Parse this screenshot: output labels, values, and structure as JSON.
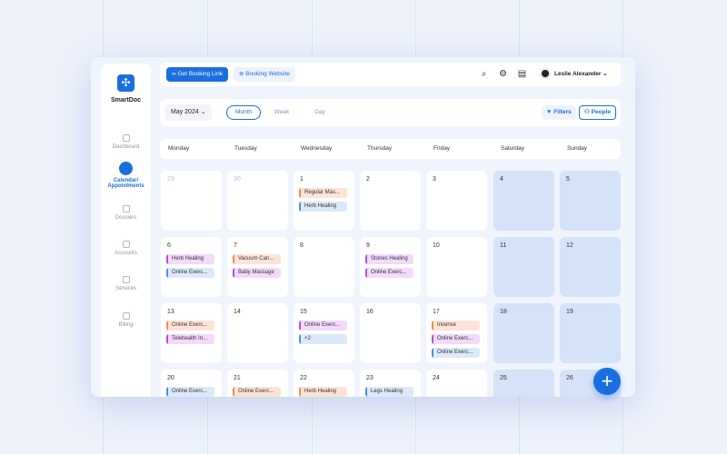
{
  "app": {
    "name": "SmartDoc"
  },
  "sidebar": {
    "items": [
      {
        "label": "Dashboard",
        "icon": "dashboard-icon",
        "active": false
      },
      {
        "label": "Calendar/ Appointments",
        "icon": "calendar-icon",
        "active": true
      },
      {
        "label": "Dossiers",
        "icon": "clipboard-icon",
        "active": false
      },
      {
        "label": "Accounts",
        "icon": "accounts-icon",
        "active": false
      },
      {
        "label": "Services",
        "icon": "heart-icon",
        "active": false
      },
      {
        "label": "Billing",
        "icon": "billing-icon",
        "active": false
      }
    ]
  },
  "topbar": {
    "booking_link": "Get Booking Link",
    "booking_website": "Booking Website",
    "user_name": "Leslie Alexander"
  },
  "toolbar": {
    "month": "May 2024",
    "views": [
      "Month",
      "Week",
      "Day"
    ],
    "active_view": "Month",
    "filters": "Filters",
    "people": "People"
  },
  "weekdays": [
    "Monday",
    "Tuesday",
    "Wednesday",
    "Thursday",
    "Friday",
    "Saturday",
    "Sunday"
  ],
  "colors": {
    "accent": "#1a6fe0",
    "weekend": "#d5e3f8",
    "orange": "#f08a4b",
    "blue": "#4a90e2",
    "purple": "#b44be0"
  },
  "weeks": [
    [
      {
        "d": "29",
        "muted": true
      },
      {
        "d": "30",
        "muted": true
      },
      {
        "d": "1",
        "events": [
          {
            "t": "Regular Mas...",
            "c": "orange"
          },
          {
            "t": "Herb Healing",
            "c": "blue"
          }
        ]
      },
      {
        "d": "2"
      },
      {
        "d": "3"
      },
      {
        "d": "4"
      },
      {
        "d": "5"
      }
    ],
    [
      {
        "d": "6",
        "events": [
          {
            "t": "Herb Healing",
            "c": "purple"
          },
          {
            "t": "Online Exerc...",
            "c": "blue"
          }
        ]
      },
      {
        "d": "7",
        "events": [
          {
            "t": "Vacuum Can...",
            "c": "orange"
          },
          {
            "t": "Baby Massage",
            "c": "purple"
          }
        ]
      },
      {
        "d": "8"
      },
      {
        "d": "9",
        "events": [
          {
            "t": "Stones Healing",
            "c": "purple"
          },
          {
            "t": "Online Exerc...",
            "c": "purple"
          }
        ]
      },
      {
        "d": "10"
      },
      {
        "d": "11"
      },
      {
        "d": "12"
      }
    ],
    [
      {
        "d": "13",
        "events": [
          {
            "t": "Online Exerc...",
            "c": "orange"
          },
          {
            "t": "Telehealth In...",
            "c": "purple"
          }
        ]
      },
      {
        "d": "14"
      },
      {
        "d": "15",
        "events": [
          {
            "t": "Online Exerc...",
            "c": "purple"
          },
          {
            "t": "+2",
            "c": "blue"
          }
        ]
      },
      {
        "d": "16"
      },
      {
        "d": "17",
        "events": [
          {
            "t": "Incense",
            "c": "orange"
          },
          {
            "t": "Online Exerc...",
            "c": "purple"
          },
          {
            "t": "Online Exerc...",
            "c": "blue"
          }
        ]
      },
      {
        "d": "18"
      },
      {
        "d": "19"
      }
    ],
    [
      {
        "d": "20",
        "events": [
          {
            "t": "Online Exerc...",
            "c": "blue"
          }
        ]
      },
      {
        "d": "21",
        "events": [
          {
            "t": "Online Exerc...",
            "c": "orange"
          }
        ]
      },
      {
        "d": "22",
        "events": [
          {
            "t": "Herb Healing",
            "c": "orange"
          }
        ]
      },
      {
        "d": "23",
        "events": [
          {
            "t": "Legs Healing",
            "c": "blue"
          }
        ]
      },
      {
        "d": "24"
      },
      {
        "d": "25"
      },
      {
        "d": "26"
      }
    ]
  ]
}
